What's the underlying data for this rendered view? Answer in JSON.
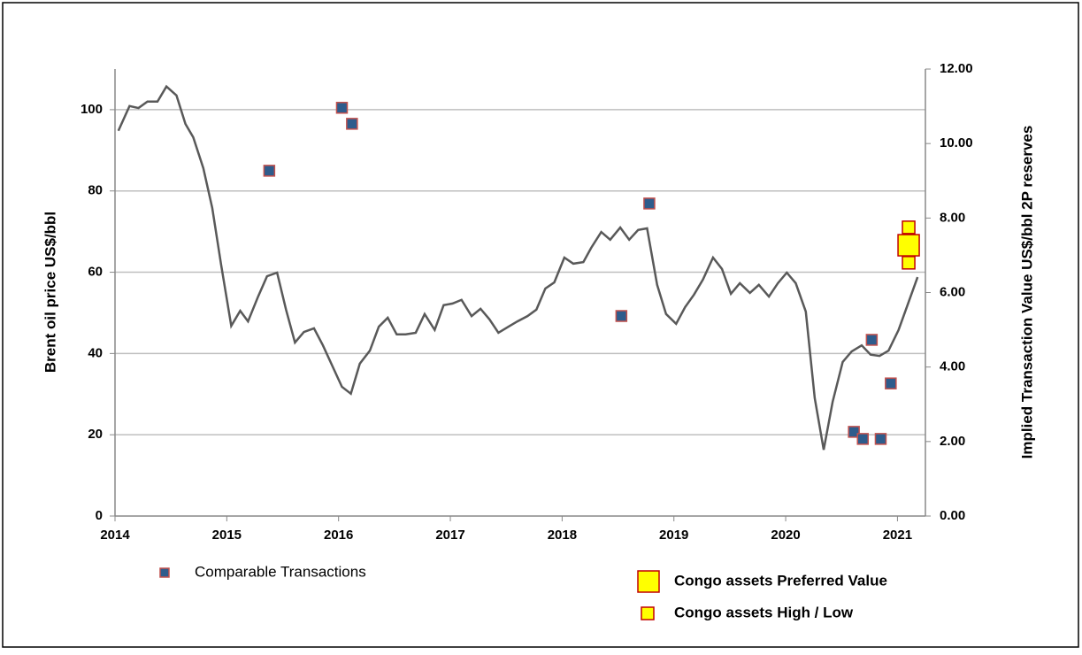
{
  "chart_data": {
    "type": "line",
    "ylabel": "Brent oil price US$/bbl",
    "y2label": "Implied Transaction Value US$/bbl 2P reserves",
    "xlim": [
      2014,
      2021.25
    ],
    "xticks": [
      2014,
      2015,
      2016,
      2017,
      2018,
      2019,
      2020,
      2021
    ],
    "ylim": [
      0,
      110
    ],
    "yticks": [
      0,
      20,
      40,
      60,
      80,
      100
    ],
    "y2lim": [
      0,
      12
    ],
    "y2ticks": [
      {
        "value": 0,
        "label": "0.00"
      },
      {
        "value": 2,
        "label": "2.00"
      },
      {
        "value": 4,
        "label": "4.00"
      },
      {
        "value": 6,
        "label": "6.00"
      },
      {
        "value": 8,
        "label": "8.00"
      },
      {
        "value": 10,
        "label": "10.00"
      },
      {
        "value": 12,
        "label": "12.00"
      }
    ],
    "grid": true,
    "series": [
      {
        "type": "line",
        "color": "#595959",
        "x": [
          2014.03,
          2014.13,
          2014.21,
          2014.29,
          2014.38,
          2014.46,
          2014.55,
          2014.63,
          2014.7,
          2014.79,
          2014.87,
          2014.95,
          2015.04,
          2015.12,
          2015.19,
          2015.28,
          2015.36,
          2015.45,
          2015.53,
          2015.61,
          2015.69,
          2015.78,
          2015.86,
          2015.95,
          2016.03,
          2016.11,
          2016.19,
          2016.28,
          2016.36,
          2016.44,
          2016.52,
          2016.6,
          2016.69,
          2016.77,
          2016.86,
          2016.94,
          2017.02,
          2017.1,
          2017.19,
          2017.27,
          2017.35,
          2017.43,
          2017.52,
          2017.6,
          2017.69,
          2017.77,
          2017.85,
          2017.93,
          2018.02,
          2018.1,
          2018.19,
          2018.26,
          2018.35,
          2018.43,
          2018.52,
          2018.6,
          2018.68,
          2018.76,
          2018.85,
          2018.93,
          2019.02,
          2019.1,
          2019.18,
          2019.26,
          2019.35,
          2019.43,
          2019.51,
          2019.59,
          2019.68,
          2019.76,
          2019.85,
          2019.93,
          2020.01,
          2020.09,
          2020.18,
          2020.26,
          2020.34,
          2020.42,
          2020.51,
          2020.59,
          2020.68,
          2020.76,
          2020.84,
          2020.92,
          2021.01,
          2021.09,
          2021.18
        ],
        "values": [
          94.8,
          100.9,
          100.4,
          102,
          102,
          105.7,
          103.5,
          96.5,
          93.2,
          85.6,
          75.8,
          61.7,
          46.8,
          50.5,
          47.9,
          54,
          59,
          59.9,
          50.8,
          42.7,
          45.3,
          46.2,
          42,
          36.6,
          31.8,
          30.1,
          37.5,
          40.7,
          46.6,
          48.8,
          44.7,
          44.7,
          45.1,
          49.7,
          45.8,
          51.9,
          52.3,
          53.2,
          49.2,
          51,
          48.4,
          45.1,
          46.6,
          47.9,
          49.2,
          50.8,
          56,
          57.5,
          63.6,
          62.1,
          62.5,
          66,
          69.9,
          68,
          71,
          68,
          70.4,
          70.8,
          56.9,
          49.7,
          47.3,
          51.4,
          54.5,
          58.2,
          63.6,
          60.8,
          54.7,
          57.3,
          54.9,
          56.9,
          54,
          57.3,
          59.9,
          57.3,
          50.3,
          29,
          16.3,
          28.1,
          37.9,
          40.5,
          42,
          39.7,
          39.4,
          40.7,
          45.8,
          51.9,
          58.8
        ]
      },
      {
        "type": "scatter",
        "name": "Comparable Transactions",
        "axis": "y2",
        "color": "#2e5c8c",
        "edge": "#c0504d",
        "x": [
          2015.38,
          2016.03,
          2016.12,
          2018.53,
          2018.78,
          2020.61,
          2020.69,
          2020.77,
          2020.85,
          2020.94
        ],
        "values": [
          9.27,
          10.96,
          10.53,
          5.37,
          8.39,
          2.26,
          2.07,
          4.73,
          2.07,
          3.56
        ]
      },
      {
        "type": "scatter",
        "name": "Congo assets High / Low",
        "axis": "y2",
        "color": "#ffff00",
        "edge": "#c00000",
        "x": [
          2021.1,
          2021.1
        ],
        "values": [
          7.75,
          6.8
        ]
      },
      {
        "type": "scatter",
        "name": "Congo assets Preferred Value",
        "axis": "y2",
        "color": "#ffff00",
        "edge": "#c00000",
        "x": [
          2021.1
        ],
        "values": [
          7.27
        ]
      }
    ]
  }
}
